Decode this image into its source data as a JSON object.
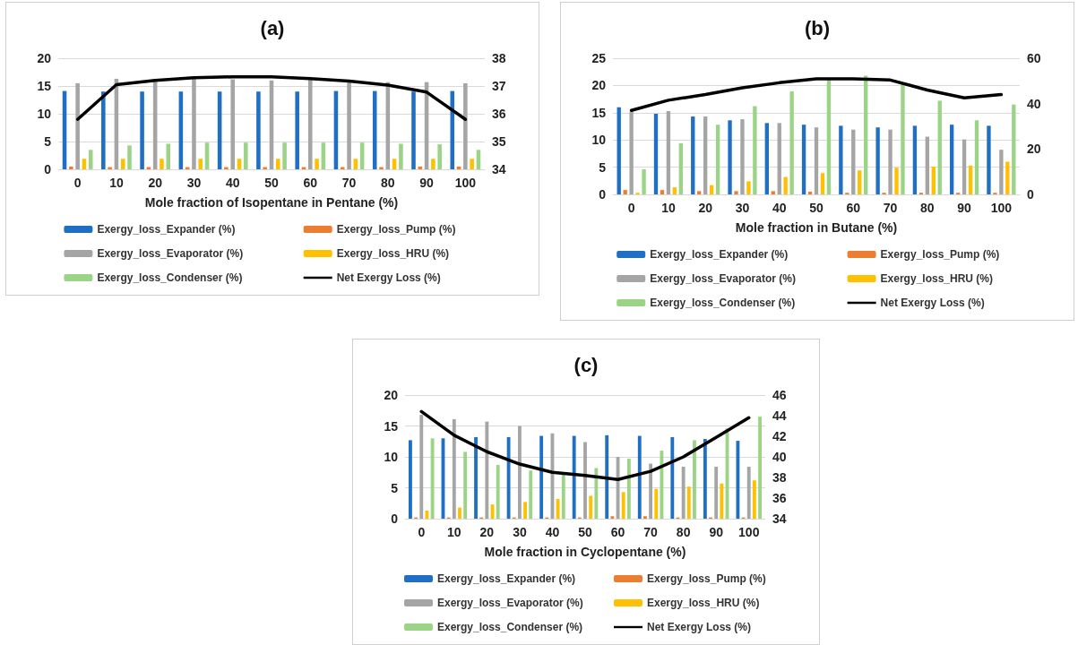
{
  "chart_data": [
    {
      "type": "bar",
      "title": "(a)",
      "xlabel": "Mole fraction of Isopentane in Pentane (%)",
      "categories": [
        "0",
        "10",
        "20",
        "30",
        "40",
        "50",
        "60",
        "70",
        "80",
        "90",
        "100"
      ],
      "series": [
        {
          "name": "Exergy_loss_Expander (%)",
          "color": "#1f6fc5",
          "values": [
            14.1,
            14,
            14,
            14,
            14,
            14,
            14,
            14.1,
            14.1,
            14,
            14.1
          ]
        },
        {
          "name": "Exergy_loss_Pump (%)",
          "color": "#ed7d31",
          "values": [
            0.5,
            0.4,
            0.4,
            0.4,
            0.4,
            0.4,
            0.4,
            0.4,
            0.4,
            0.5,
            0.5
          ]
        },
        {
          "name": "Exergy_loss_Evaporator (%)",
          "color": "#a5a5a5",
          "values": [
            15.5,
            16.3,
            16.2,
            16.4,
            16.2,
            16,
            16.2,
            15.8,
            15.7,
            15.7,
            15.5
          ]
        },
        {
          "name": "Exergy_loss_HRU (%)",
          "color": "#ffc000",
          "values": [
            1.9,
            1.9,
            1.9,
            1.9,
            1.9,
            1.9,
            1.9,
            1.9,
            1.9,
            1.9,
            1.9
          ]
        },
        {
          "name": "Exergy_loss_Condenser (%)",
          "color": "#9bd486",
          "values": [
            3.5,
            4.3,
            4.6,
            4.8,
            4.8,
            4.8,
            4.8,
            4.8,
            4.6,
            4.5,
            3.5
          ]
        },
        {
          "name": "Net Exergy Loss (%)",
          "type": "line",
          "axis": "y2",
          "marker": "none",
          "color": "#000000",
          "values": [
            35.8,
            37.05,
            37.2,
            37.3,
            37.33,
            37.33,
            37.27,
            37.18,
            37.03,
            36.78,
            35.8
          ]
        }
      ],
      "ylim": [
        0,
        20
      ],
      "yticks": [
        0,
        5,
        10,
        15,
        20
      ],
      "y2lim": [
        34,
        38
      ],
      "y2ticks": [
        34,
        35,
        36,
        37,
        38
      ],
      "grid": "y",
      "legend": "bottom"
    },
    {
      "type": "bar",
      "title": "(b)",
      "xlabel": "Mole fraction in Butane (%)",
      "categories": [
        "0",
        "10",
        "20",
        "30",
        "40",
        "50",
        "60",
        "70",
        "80",
        "90",
        "100"
      ],
      "series": [
        {
          "name": "Exergy_loss_Expander (%)",
          "color": "#1f6fc5",
          "values": [
            16,
            14.8,
            14.3,
            13.6,
            13.1,
            12.8,
            12.6,
            12.3,
            12.6,
            12.8,
            12.6
          ]
        },
        {
          "name": "Exergy_loss_Pump (%)",
          "color": "#ed7d31",
          "values": [
            0.8,
            0.8,
            0.6,
            0.6,
            0.6,
            0.5,
            0.3,
            0.3,
            0.3,
            0.3,
            0.3
          ]
        },
        {
          "name": "Exergy_loss_Evaporator (%)",
          "color": "#a5a5a5",
          "values": [
            15.2,
            15.3,
            14.3,
            13.8,
            13.1,
            12.3,
            11.9,
            11.9,
            10.6,
            10.1,
            8.2
          ]
        },
        {
          "name": "Exergy_loss_HRU (%)",
          "color": "#ffc000",
          "values": [
            0.3,
            1.3,
            1.7,
            2.4,
            3.2,
            3.9,
            4.4,
            4.9,
            5.1,
            5.3,
            6.0
          ]
        },
        {
          "name": "Exergy_loss_Condenser (%)",
          "color": "#9bd486",
          "values": [
            4.6,
            9.4,
            12.8,
            16.2,
            18.9,
            21.2,
            21.8,
            20.5,
            17.2,
            13.6,
            16.5
          ]
        },
        {
          "name": "Net Exergy Loss (%)",
          "type": "line",
          "axis": "y2",
          "marker": "none",
          "color": "#000000",
          "values": [
            37,
            41.5,
            44,
            47,
            49.2,
            50.9,
            50.9,
            50.4,
            46,
            42.5,
            44
          ]
        }
      ],
      "ylim": [
        0,
        25
      ],
      "yticks": [
        0,
        5,
        10,
        15,
        20,
        25
      ],
      "y2lim": [
        0,
        60
      ],
      "y2ticks": [
        0,
        20,
        40,
        60
      ],
      "grid": "y",
      "legend": "bottom"
    },
    {
      "type": "bar",
      "title": "(c)",
      "xlabel": "Mole fraction in Cyclopentane (%)",
      "categories": [
        "0",
        "10",
        "20",
        "30",
        "40",
        "50",
        "60",
        "70",
        "80",
        "90",
        "100"
      ],
      "series": [
        {
          "name": "Exergy_loss_Expander (%)",
          "color": "#1f6fc5",
          "values": [
            12.7,
            13,
            13.2,
            13.2,
            13.4,
            13.4,
            13.5,
            13.4,
            13.2,
            12.9,
            12.6
          ]
        },
        {
          "name": "Exergy_loss_Pump (%)",
          "color": "#ed7d31",
          "values": [
            0.2,
            0.2,
            0.2,
            0.2,
            0.2,
            0.2,
            0.4,
            0.4,
            0.2,
            0.2,
            0.2
          ]
        },
        {
          "name": "Exergy_loss_Evaporator (%)",
          "color": "#a5a5a5",
          "values": [
            16.8,
            16.1,
            15.7,
            15,
            13.8,
            12.4,
            10,
            8.9,
            8.4,
            8.4,
            8.4
          ]
        },
        {
          "name": "Exergy_loss_HRU (%)",
          "color": "#ffc000",
          "values": [
            1.3,
            1.8,
            2.3,
            2.7,
            3.2,
            3.7,
            4.3,
            4.8,
            5.2,
            5.7,
            6.2
          ]
        },
        {
          "name": "Exergy_loss_Condenser (%)",
          "color": "#9bd486",
          "values": [
            13,
            10.8,
            8.7,
            7.8,
            7.5,
            8.2,
            9.7,
            11,
            12.7,
            14.6,
            16.5
          ]
        },
        {
          "name": "Net Exergy Loss (%)",
          "type": "line",
          "axis": "y2",
          "marker": "none",
          "color": "#000000",
          "values": [
            44.4,
            42.1,
            40.5,
            39.3,
            38.5,
            38.2,
            37.8,
            38.6,
            40,
            41.9,
            43.8
          ]
        }
      ],
      "ylim": [
        0,
        20
      ],
      "yticks": [
        0,
        5,
        10,
        15,
        20
      ],
      "y2lim": [
        34,
        46
      ],
      "y2ticks": [
        34,
        36,
        38,
        40,
        42,
        44,
        46
      ],
      "grid": "y",
      "legend": "bottom"
    }
  ]
}
